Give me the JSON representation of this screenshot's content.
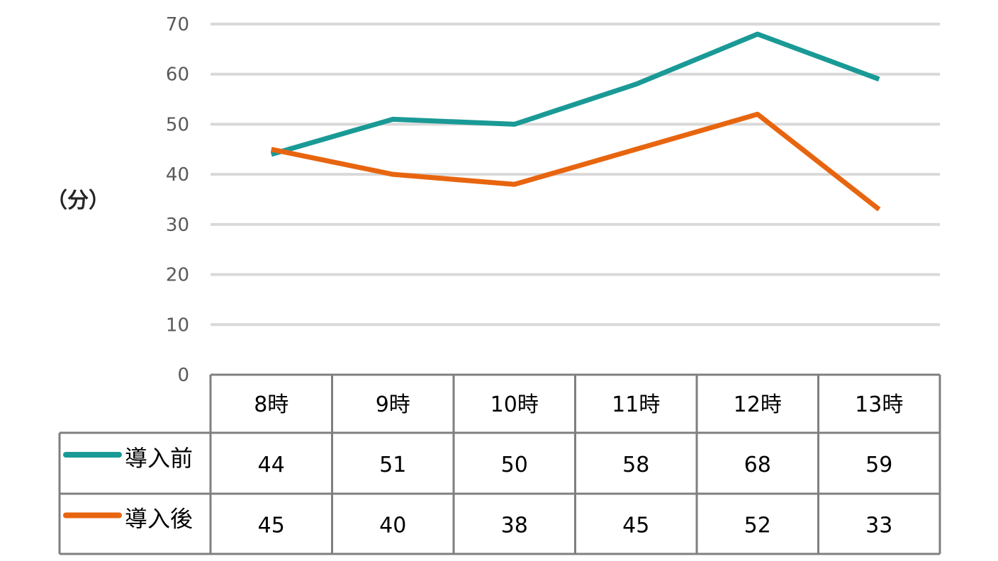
{
  "chart_data": {
    "type": "line",
    "categories": [
      "8時",
      "9時",
      "10時",
      "11時",
      "12時",
      "13時"
    ],
    "series": [
      {
        "name": "導入前",
        "values": [
          44,
          51,
          50,
          58,
          68,
          59
        ],
        "color": "#1a9a96"
      },
      {
        "name": "導入後",
        "values": [
          45,
          40,
          38,
          45,
          52,
          33
        ],
        "color": "#e8650f"
      }
    ],
    "ylabel": "（分）",
    "ylim": [
      0,
      70
    ],
    "yticks": [
      0,
      10,
      20,
      30,
      40,
      50,
      60,
      70
    ],
    "grid": true,
    "data_table": true
  }
}
